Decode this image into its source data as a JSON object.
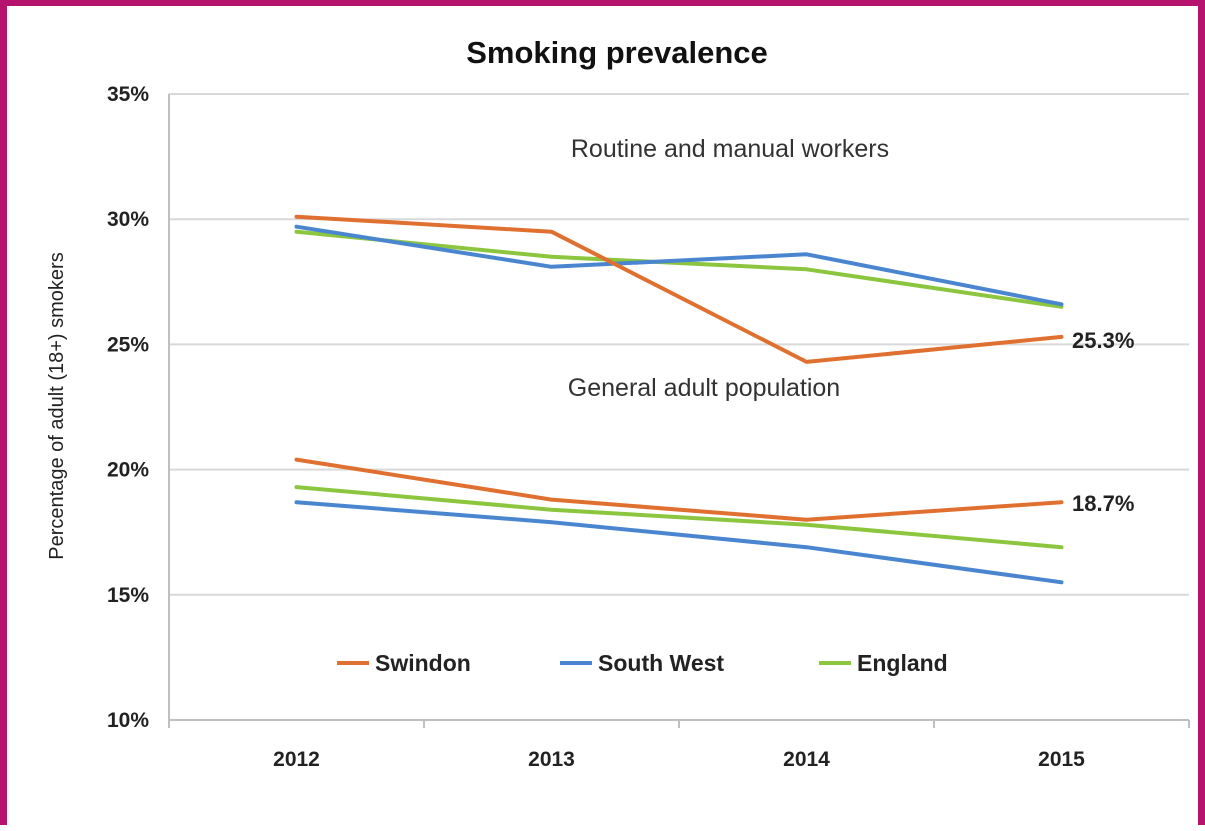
{
  "chart_data": {
    "type": "line",
    "title": "Smoking prevalence",
    "ylabel": "Percentage of adult (18+) smokers",
    "xlabel": "",
    "categories": [
      "2012",
      "2013",
      "2014",
      "2015"
    ],
    "ylim": [
      10,
      35
    ],
    "yticks": [
      10,
      15,
      20,
      25,
      30,
      35
    ],
    "ytick_labels": [
      "10%",
      "15%",
      "20%",
      "25%",
      "30%",
      "35%"
    ],
    "grid": "horizontal",
    "legend": {
      "placement": "bottom-inside",
      "entries": [
        "Swindon",
        "South West",
        "England"
      ]
    },
    "colors": {
      "Swindon": "#e07030",
      "South West": "#4a86d0",
      "England": "#8cc63f"
    },
    "groups": [
      {
        "label": "Routine and manual workers",
        "series": [
          {
            "name": "Swindon",
            "values": [
              30.1,
              29.5,
              24.3,
              25.3
            ]
          },
          {
            "name": "South West",
            "values": [
              29.7,
              28.1,
              28.6,
              26.6
            ]
          },
          {
            "name": "England",
            "values": [
              29.5,
              28.5,
              28.0,
              26.5
            ]
          }
        ]
      },
      {
        "label": "General adult population",
        "series": [
          {
            "name": "Swindon",
            "values": [
              20.4,
              18.8,
              18.0,
              18.7
            ]
          },
          {
            "name": "South West",
            "values": [
              18.7,
              17.9,
              16.9,
              15.5
            ]
          },
          {
            "name": "England",
            "values": [
              19.3,
              18.4,
              17.8,
              16.9
            ]
          }
        ]
      }
    ],
    "annotations": [
      "25.3%",
      "18.7%"
    ]
  }
}
